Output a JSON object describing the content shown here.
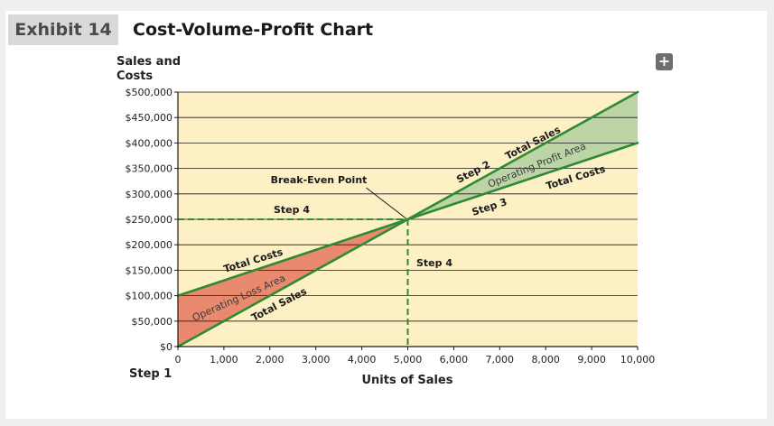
{
  "exhibit": {
    "tag": "Exhibit 14",
    "title": "Cost-Volume-Profit Chart"
  },
  "expand_icon": {
    "name": "plus-icon",
    "glyph": "+"
  },
  "colors": {
    "plot_bg": "#fdf0c4",
    "line": "#2f8a34",
    "loss_fill": "#e98a6e",
    "profit_fill": "#bcd4a6",
    "gridline": "#1a1a1a"
  },
  "chart_data": {
    "type": "line",
    "title": "Cost-Volume-Profit Chart",
    "xlabel": "Units of Sales",
    "ylabel_lines": [
      "Sales and",
      "Costs"
    ],
    "xlim": [
      0,
      10000
    ],
    "ylim": [
      0,
      500000
    ],
    "x_ticks": [
      0,
      1000,
      2000,
      3000,
      4000,
      5000,
      6000,
      7000,
      8000,
      9000,
      10000
    ],
    "x_tick_labels": [
      "0",
      "1,000",
      "2,000",
      "3,000",
      "4,000",
      "5,000",
      "6,000",
      "7,000",
      "8,000",
      "9,000",
      "10,000"
    ],
    "y_ticks": [
      0,
      50000,
      100000,
      150000,
      200000,
      250000,
      300000,
      350000,
      400000,
      450000,
      500000
    ],
    "y_tick_labels": [
      "$0",
      "$50,000",
      "$100,000",
      "$150,000",
      "$200,000",
      "$250,000",
      "$300,000",
      "$350,000",
      "$400,000",
      "$450,000",
      "$500,000"
    ],
    "grid": "horizontal",
    "series": [
      {
        "name": "Total Sales",
        "x": [
          0,
          10000
        ],
        "y": [
          0,
          500000
        ]
      },
      {
        "name": "Total Costs",
        "x": [
          0,
          10000
        ],
        "y": [
          100000,
          400000
        ]
      }
    ],
    "break_even": {
      "x": 5000,
      "y": 250000
    },
    "annotations": {
      "break_even_label": "Break-Even Point",
      "step1": "Step 1",
      "step2": "Step 2",
      "step3": "Step 3",
      "step4_h": "Step 4",
      "step4_v": "Step 4",
      "total_sales_left": "Total Sales",
      "total_costs_left": "Total Costs",
      "total_sales_right": "Total Sales",
      "total_costs_right": "Total Costs",
      "loss_area": "Operating Loss Area",
      "profit_area": "Operating Profit Area"
    }
  }
}
